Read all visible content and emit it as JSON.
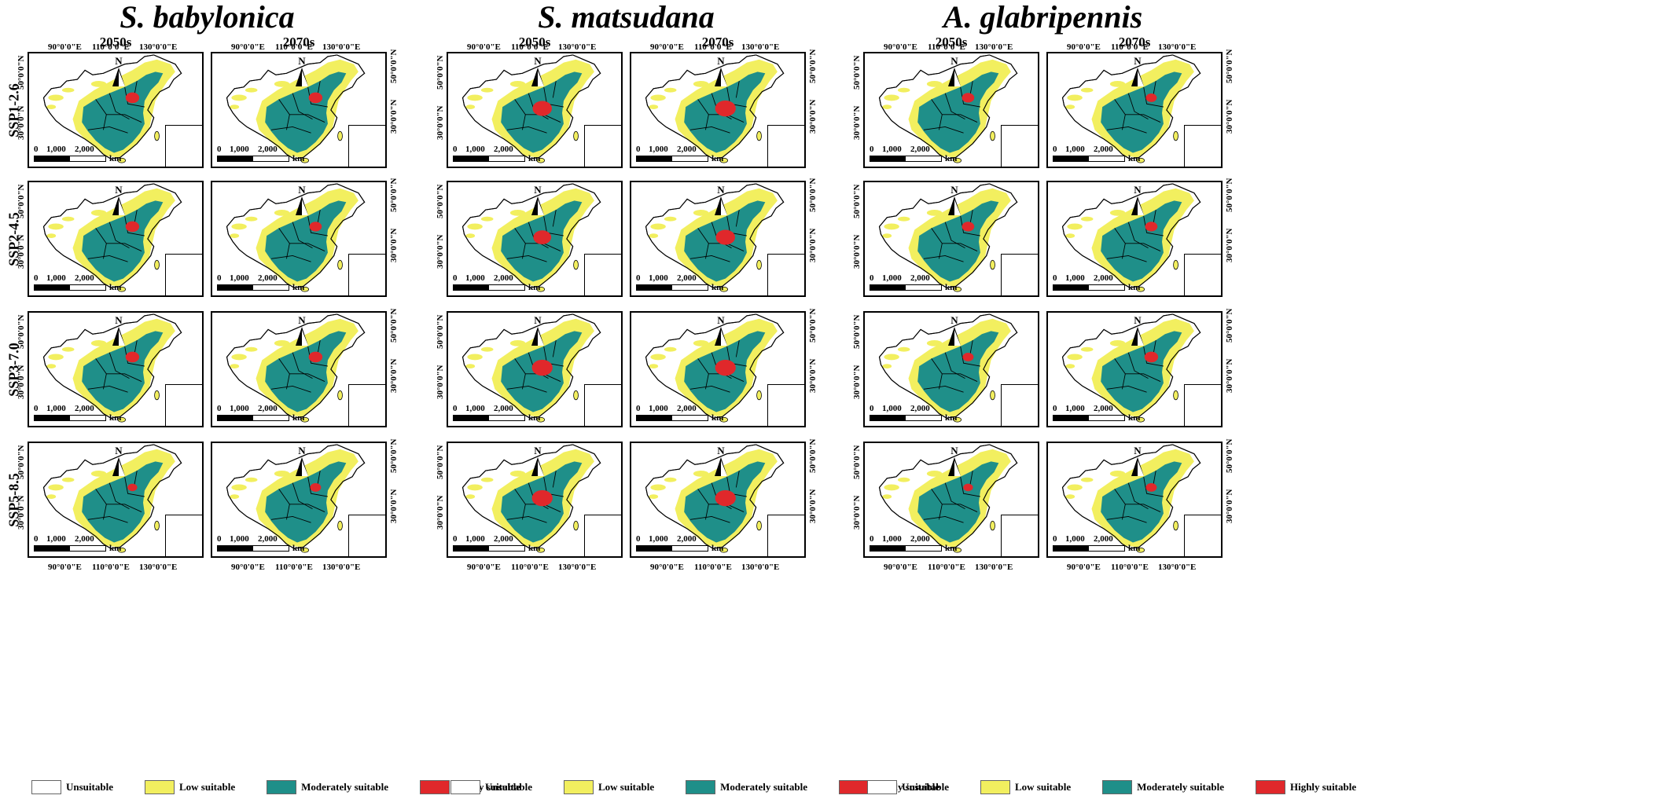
{
  "species": [
    {
      "name": "S. babylonica"
    },
    {
      "name": "S. matsudana"
    },
    {
      "name": "A. glabripennis"
    }
  ],
  "periods": [
    "2050s",
    "2070s"
  ],
  "scenarios": [
    "SSP1-2.6",
    "SSP2-4.5",
    "SSP3-7.0",
    "SSP5-8.5"
  ],
  "lon_labels": [
    "90°0'0\"E",
    "110°0'0\"E",
    "130°0'0\"E"
  ],
  "lat_labels": [
    "50°0'0\"N",
    "30°0'0\"N"
  ],
  "north_label": "N",
  "scale": {
    "ticks": [
      "0",
      "1,000",
      "2,000"
    ],
    "unit": "km"
  },
  "legend": [
    {
      "label": "Unsuitable",
      "color": "#ffffff"
    },
    {
      "label": "Low suitable",
      "color": "#f2ef5f"
    },
    {
      "label": "Moderately suitable",
      "color": "#1f8f89"
    },
    {
      "label": "Highly suitable",
      "color": "#e0282b"
    }
  ],
  "colors": {
    "low": "#f2ef5f",
    "moderate": "#1f8f89",
    "high": "#e0282b",
    "border": "#000000"
  },
  "high_level": {
    "S. babylonica": [
      [
        1,
        1
      ],
      [
        1,
        0.9
      ],
      [
        1,
        1
      ],
      [
        0.7,
        0.8
      ]
    ],
    "S. matsudana": [
      [
        1.4,
        1.5
      ],
      [
        1.3,
        1.4
      ],
      [
        1.5,
        1.5
      ],
      [
        1.5,
        1.5
      ]
    ],
    "A. glabripennis": [
      [
        0.9,
        0.8
      ],
      [
        0.9,
        0.9
      ],
      [
        0.8,
        1.0
      ],
      [
        0.7,
        0.8
      ]
    ]
  }
}
